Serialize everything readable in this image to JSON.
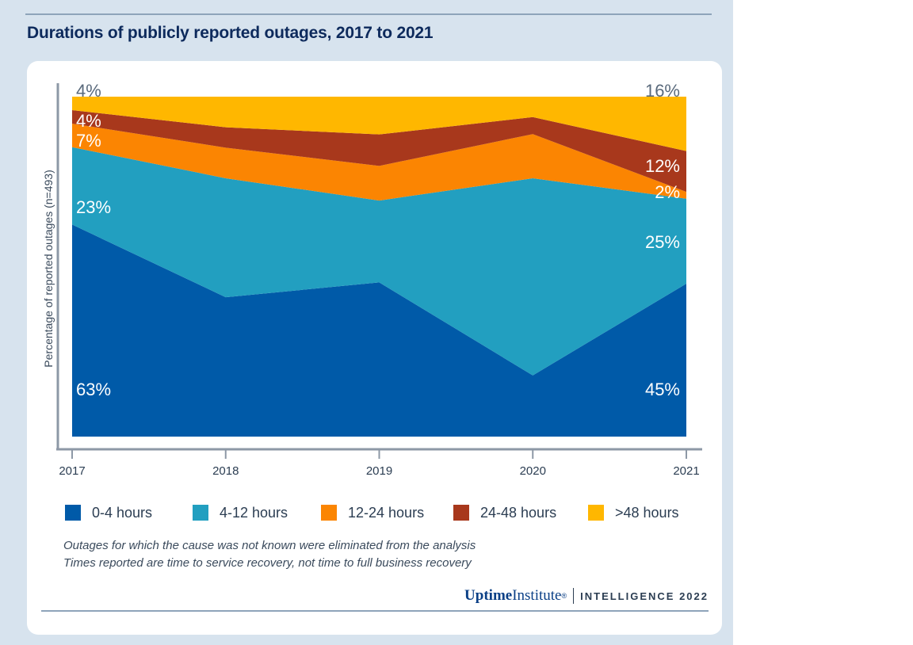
{
  "title": "Durations of publicly reported outages, 2017 to 2021",
  "chart_data": {
    "type": "area",
    "stacked": true,
    "normalized": true,
    "x": [
      "2017",
      "2018",
      "2019",
      "2020",
      "2021"
    ],
    "ylabel": "Percentage of reported outages (n=493)",
    "ylim": [
      0,
      100
    ],
    "series": [
      {
        "name": "0-4 hours",
        "color": "#005aa8",
        "values": [
          63,
          41,
          49,
          18,
          45
        ]
      },
      {
        "name": "4-12 hours",
        "color": "#229fc0",
        "values": [
          23,
          35,
          26,
          58,
          25
        ]
      },
      {
        "name": "12-24 hours",
        "color": "#fb8502",
        "values": [
          7,
          9,
          11,
          13,
          2
        ]
      },
      {
        "name": "24-48 hours",
        "color": "#a8381c",
        "values": [
          4,
          6,
          10,
          5,
          12
        ]
      },
      {
        "name": ">48 hours",
        "color": "#ffb700",
        "values": [
          4,
          9,
          12,
          6,
          16
        ]
      }
    ],
    "labels_2017": [
      "63%",
      "23%",
      "7%",
      "4%",
      "4%"
    ],
    "labels_2021": [
      "45%",
      "25%",
      "2%",
      "12%",
      "16%"
    ]
  },
  "legend": [
    {
      "label": "0-4 hours",
      "color": "#005aa8"
    },
    {
      "label": "4-12 hours",
      "color": "#229fc0"
    },
    {
      "label": "12-24 hours",
      "color": "#fb8502"
    },
    {
      "label": "24-48 hours",
      "color": "#a8381c"
    },
    {
      "label": ">48 hours",
      "color": "#ffb700"
    }
  ],
  "notes": [
    "Outages for which the cause was not known were eliminated from the analysis",
    "Times reported are time to service recovery, not time to full business recovery"
  ],
  "brand": {
    "uptime": "Uptime",
    "institute": "Institute",
    "mark": "®",
    "intelligence": "INTELLIGENCE 2022"
  }
}
